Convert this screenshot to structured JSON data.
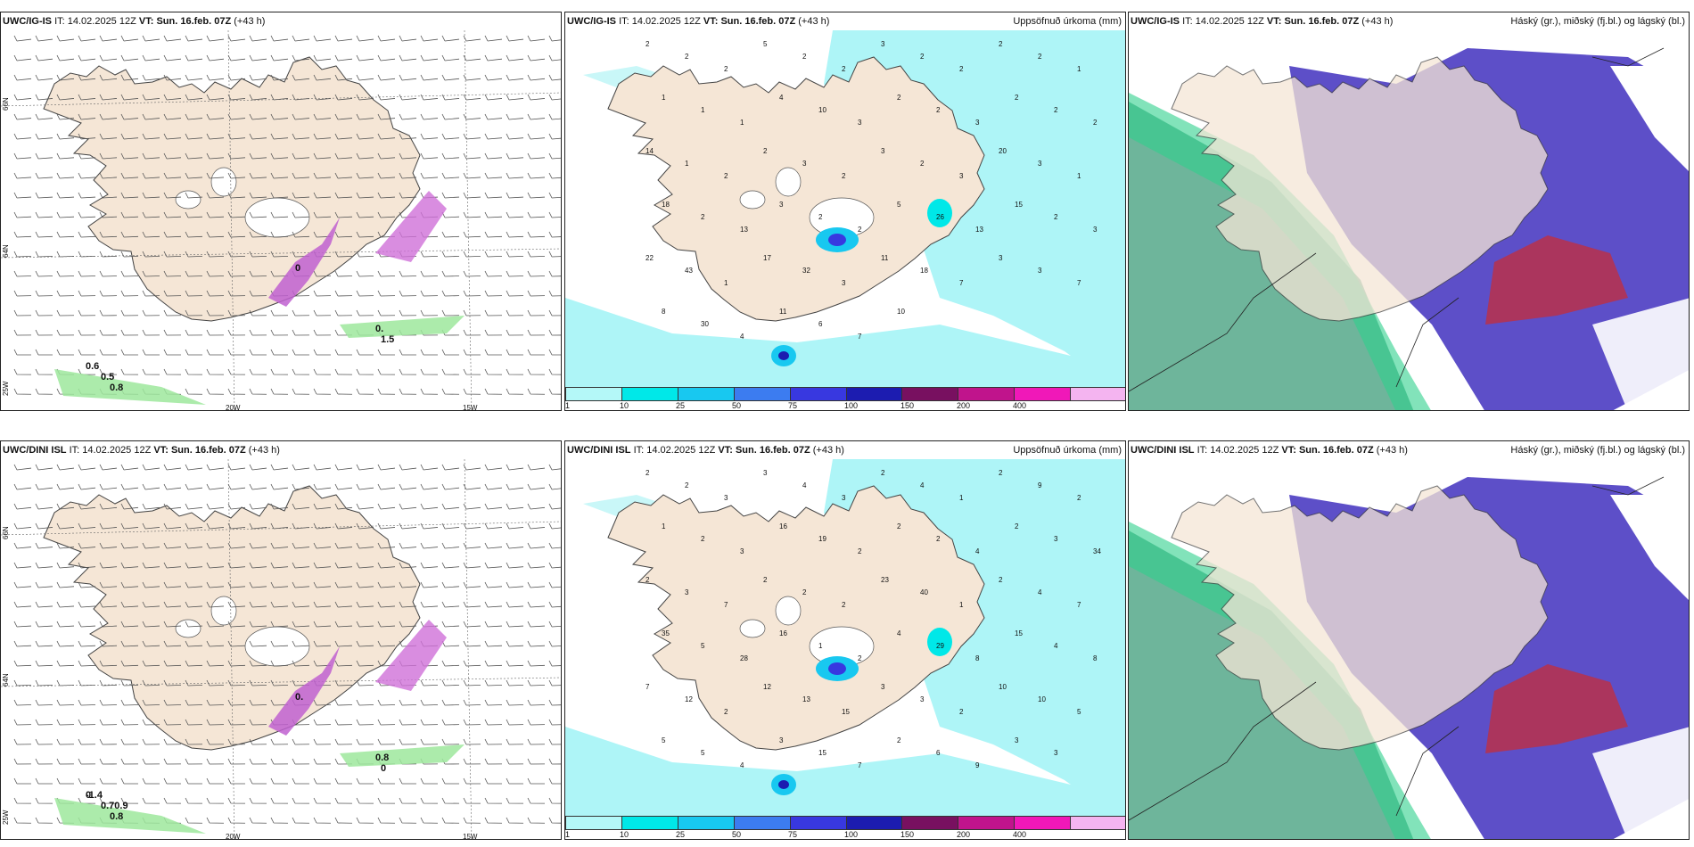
{
  "panels": [
    {
      "model": "UWC/IG-IS",
      "it_label": "IT:",
      "it_value": "14.02.2025 12Z",
      "vt_label": "VT:",
      "vt_value": "Sun. 16.feb. 07Z",
      "lead": "(+43 h)",
      "right_title": "",
      "kind": "wind",
      "labels": [
        "0.6",
        "0.5",
        "0.8",
        "0.",
        "1.5",
        "0"
      ],
      "lat_labels": [
        "66N",
        "64N",
        "25W"
      ],
      "lon_labels": [
        "20W",
        "15W"
      ]
    },
    {
      "model": "UWC/IG-IS",
      "it_label": "IT:",
      "it_value": "14.02.2025 12Z",
      "vt_label": "VT:",
      "vt_value": "Sun. 16.feb. 07Z",
      "lead": "(+43 h)",
      "right_title": "Uppsöfnuð úrkoma (mm)",
      "kind": "precip",
      "values": [
        "2",
        "2",
        "2",
        "5",
        "2",
        "2",
        "3",
        "2",
        "2",
        "2",
        "2",
        "1",
        "1",
        "1",
        "1",
        "4",
        "10",
        "3",
        "2",
        "2",
        "3",
        "2",
        "2",
        "2",
        "14",
        "1",
        "2",
        "2",
        "3",
        "2",
        "3",
        "2",
        "3",
        "20",
        "3",
        "1",
        "18",
        "2",
        "13",
        "3",
        "2",
        "2",
        "5",
        "26",
        "13",
        "15",
        "2",
        "3",
        "22",
        "43",
        "1",
        "17",
        "32",
        "3",
        "11",
        "18",
        "7",
        "3",
        "3",
        "7",
        "8",
        "30",
        "4",
        "11",
        "6",
        "7",
        "10"
      ]
    },
    {
      "model": "UWC/IG-IS",
      "it_label": "IT:",
      "it_value": "14.02.2025 12Z",
      "vt_label": "VT:",
      "vt_value": "Sun. 16.feb. 07Z",
      "lead": "(+43 h)",
      "right_title": "Háský (gr.), miðský (fj.bl.) og lágský (bl.)",
      "kind": "cloud"
    },
    {
      "model": "UWC/DINI ISL",
      "it_label": "IT:",
      "it_value": "14.02.2025 12Z",
      "vt_label": "VT:",
      "vt_value": "Sun. 16.feb. 07Z",
      "lead": "(+43 h)",
      "right_title": "",
      "kind": "wind",
      "labels": [
        "-1.4",
        "0.70.9",
        "0.8",
        "0.8",
        "0",
        "0.",
        "0"
      ],
      "lat_labels": [
        "66N",
        "64N",
        "25W"
      ],
      "lon_labels": [
        "20W",
        "15W"
      ]
    },
    {
      "model": "UWC/DINI ISL",
      "it_label": "IT:",
      "it_value": "14.02.2025 12Z",
      "vt_label": "VT:",
      "vt_value": "Sun. 16.feb. 07Z",
      "lead": "(+43 h)",
      "right_title": "Uppsöfnuð úrkoma (mm)",
      "kind": "precip",
      "values": [
        "2",
        "2",
        "3",
        "3",
        "4",
        "3",
        "2",
        "4",
        "1",
        "2",
        "9",
        "2",
        "1",
        "2",
        "3",
        "16",
        "19",
        "2",
        "2",
        "2",
        "4",
        "2",
        "3",
        "34",
        "2",
        "3",
        "7",
        "2",
        "2",
        "2",
        "23",
        "40",
        "1",
        "2",
        "4",
        "7",
        "35",
        "5",
        "28",
        "16",
        "1",
        "2",
        "4",
        "29",
        "8",
        "15",
        "4",
        "8",
        "7",
        "12",
        "2",
        "12",
        "13",
        "15",
        "3",
        "3",
        "2",
        "10",
        "10",
        "5",
        "5",
        "5",
        "4",
        "3",
        "15",
        "7",
        "2",
        "6",
        "9",
        "3",
        "3"
      ]
    },
    {
      "model": "UWC/DINI ISL",
      "it_label": "IT:",
      "it_value": "14.02.2025 12Z",
      "vt_label": "VT:",
      "vt_value": "Sun. 16.feb. 07Z",
      "lead": "(+43 h)",
      "right_title": "Háský (gr.), miðský (fj.bl.) og lágský (bl.)",
      "kind": "cloud"
    }
  ],
  "precip_legend": {
    "ticks": [
      "1",
      "10",
      "25",
      "50",
      "75",
      "100",
      "150",
      "200",
      "400"
    ],
    "colors": [
      "#b4f8f8",
      "#00e8e8",
      "#18c8f0",
      "#3c7cf0",
      "#3838e0",
      "#1c1cb0",
      "#781060",
      "#c0148c",
      "#f018b8",
      "#f4b4f0"
    ]
  }
}
